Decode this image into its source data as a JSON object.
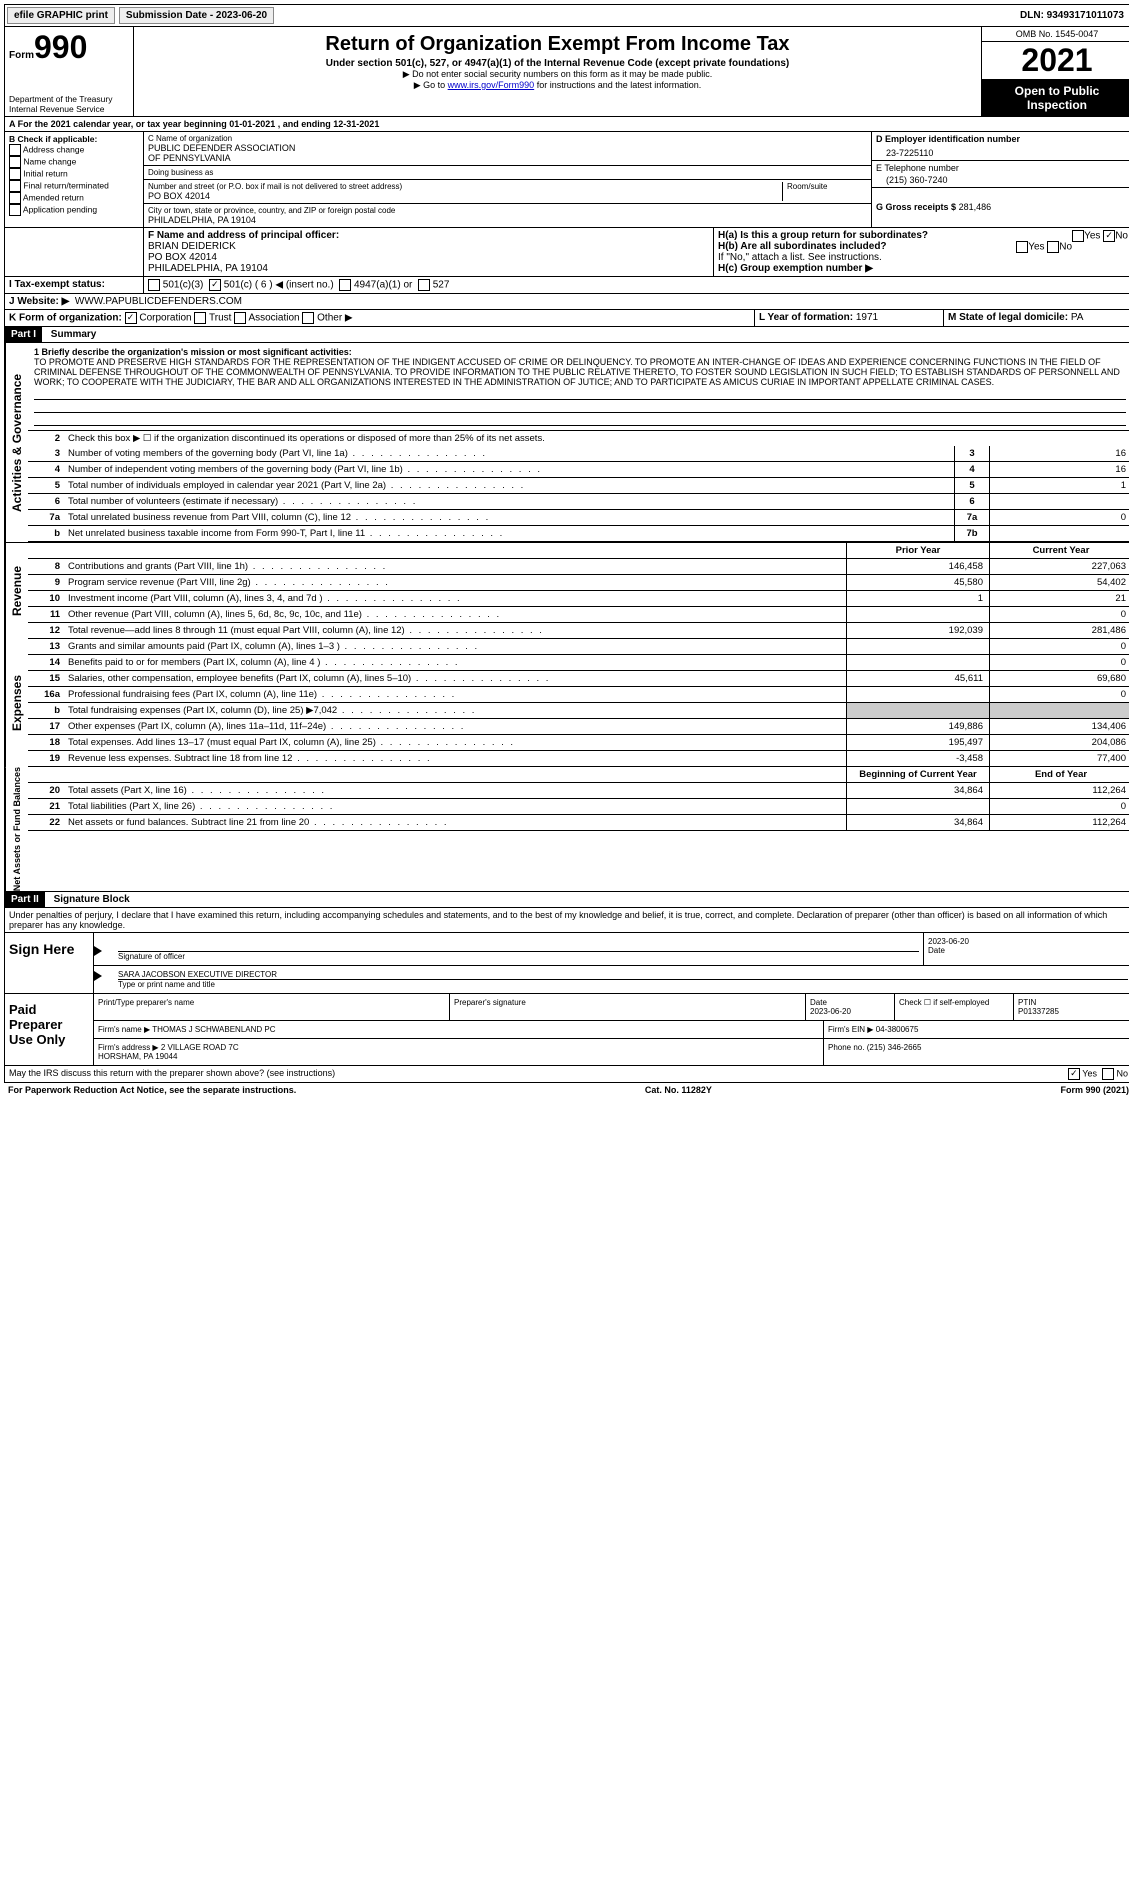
{
  "topbar": {
    "efile": "efile GRAPHIC print",
    "submission_label": "Submission Date - 2023-06-20",
    "dln": "DLN: 93493171011073"
  },
  "header": {
    "form_label": "Form",
    "form_number": "990",
    "title": "Return of Organization Exempt From Income Tax",
    "subtitle": "Under section 501(c), 527, or 4947(a)(1) of the Internal Revenue Code (except private foundations)",
    "note1": "▶ Do not enter social security numbers on this form as it may be made public.",
    "note2_prefix": "▶ Go to ",
    "note2_link": "www.irs.gov/Form990",
    "note2_suffix": " for instructions and the latest information.",
    "dept": "Department of the Treasury\nInternal Revenue Service",
    "omb": "OMB No. 1545-0047",
    "year": "2021",
    "open_public": "Open to Public Inspection"
  },
  "line_a": "A  For the 2021 calendar year, or tax year beginning 01-01-2021    , and ending 12-31-2021",
  "section_b": {
    "header": "B Check if applicable:",
    "items": [
      "Address change",
      "Name change",
      "Initial return",
      "Final return/terminated",
      "Amended return",
      "Application pending"
    ]
  },
  "section_c": {
    "name_label": "C Name of organization",
    "name": "PUBLIC DEFENDER ASSOCIATION\nOF PENNSYLVANIA",
    "dba_label": "Doing business as",
    "dba": "",
    "street_label": "Number and street (or P.O. box if mail is not delivered to street address)",
    "street": "PO BOX 42014",
    "room_label": "Room/suite",
    "city_label": "City or town, state or province, country, and ZIP or foreign postal code",
    "city": "PHILADELPHIA, PA  19104"
  },
  "section_d": {
    "label": "D Employer identification number",
    "value": "23-7225110"
  },
  "section_e": {
    "label": "E Telephone number",
    "value": "(215) 360-7240"
  },
  "section_g": {
    "label": "G Gross receipts $",
    "value": "281,486"
  },
  "section_f": {
    "label": "F  Name and address of principal officer:",
    "name": "BRIAN DEIDERICK",
    "addr1": "PO BOX 42014",
    "addr2": "PHILADELPHIA, PA  19104"
  },
  "section_h": {
    "a_label": "H(a)  Is this a group return for subordinates?",
    "a_yes": "Yes",
    "a_no": "No",
    "b_label": "H(b)  Are all subordinates included?",
    "b_note": "If \"No,\" attach a list. See instructions.",
    "c_label": "H(c)  Group exemption number ▶"
  },
  "line_i": {
    "label": "I   Tax-exempt status:",
    "opts": [
      "501(c)(3)",
      "501(c) ( 6 ) ◀ (insert no.)",
      "4947(a)(1) or",
      "527"
    ]
  },
  "line_j": {
    "label": "J   Website: ▶",
    "value": "WWW.PAPUBLICDEFENDERS.COM"
  },
  "line_k": {
    "label": "K Form of organization:",
    "opts": [
      "Corporation",
      "Trust",
      "Association",
      "Other ▶"
    ]
  },
  "line_l": {
    "label": "L Year of formation:",
    "value": "1971"
  },
  "line_m": {
    "label": "M State of legal domicile:",
    "value": "PA"
  },
  "part1": {
    "header": "Part I",
    "title": "Summary",
    "line1_label": "1   Briefly describe the organization's mission or most significant activities:",
    "mission": "TO PROMOTE AND PRESERVE HIGH STANDARDS FOR THE REPRESENTATION OF THE INDIGENT ACCUSED OF CRIME OR DELINQUENCY. TO PROMOTE AN INTER-CHANGE OF IDEAS AND EXPERIENCE CONCERNING FUNCTIONS IN THE FIELD OF CRIMINAL DEFENSE THROUGHOUT OF THE COMMONWEALTH OF PENNSYLVANIA. TO PROVIDE INFORMATION TO THE PUBLIC RELATIVE THERETO, TO FOSTER SOUND LEGISLATION IN SUCH FIELD; TO ESTABLISH STANDARDS OF PERSONNELL AND WORK; TO COOPERATE WITH THE JUDICIARY, THE BAR AND ALL ORGANIZATIONS INTERESTED IN THE ADMINISTRATION OF JUTICE; AND TO PARTICIPATE AS AMICUS CURIAE IN IMPORTANT APPELLATE CRIMINAL CASES.",
    "line2": "Check this box ▶ ☐ if the organization discontinued its operations or disposed of more than 25% of its net assets.",
    "governance_label": "Activities & Governance",
    "rows_g": [
      {
        "n": "3",
        "d": "Number of voting members of the governing body (Part VI, line 1a)",
        "box": "3",
        "v": "16"
      },
      {
        "n": "4",
        "d": "Number of independent voting members of the governing body (Part VI, line 1b)",
        "box": "4",
        "v": "16"
      },
      {
        "n": "5",
        "d": "Total number of individuals employed in calendar year 2021 (Part V, line 2a)",
        "box": "5",
        "v": "1"
      },
      {
        "n": "6",
        "d": "Total number of volunteers (estimate if necessary)",
        "box": "6",
        "v": ""
      },
      {
        "n": "7a",
        "d": "Total unrelated business revenue from Part VIII, column (C), line 12",
        "box": "7a",
        "v": "0"
      },
      {
        "n": "b",
        "d": "Net unrelated business taxable income from Form 990-T, Part I, line 11",
        "box": "7b",
        "v": ""
      }
    ],
    "prior_year": "Prior Year",
    "current_year": "Current Year",
    "revenue_label": "Revenue",
    "rows_r": [
      {
        "n": "8",
        "d": "Contributions and grants (Part VIII, line 1h)",
        "p": "146,458",
        "c": "227,063"
      },
      {
        "n": "9",
        "d": "Program service revenue (Part VIII, line 2g)",
        "p": "45,580",
        "c": "54,402"
      },
      {
        "n": "10",
        "d": "Investment income (Part VIII, column (A), lines 3, 4, and 7d )",
        "p": "1",
        "c": "21"
      },
      {
        "n": "11",
        "d": "Other revenue (Part VIII, column (A), lines 5, 6d, 8c, 9c, 10c, and 11e)",
        "p": "",
        "c": "0"
      },
      {
        "n": "12",
        "d": "Total revenue—add lines 8 through 11 (must equal Part VIII, column (A), line 12)",
        "p": "192,039",
        "c": "281,486"
      }
    ],
    "expenses_label": "Expenses",
    "rows_e": [
      {
        "n": "13",
        "d": "Grants and similar amounts paid (Part IX, column (A), lines 1–3 )",
        "p": "",
        "c": "0"
      },
      {
        "n": "14",
        "d": "Benefits paid to or for members (Part IX, column (A), line 4 )",
        "p": "",
        "c": "0"
      },
      {
        "n": "15",
        "d": "Salaries, other compensation, employee benefits (Part IX, column (A), lines 5–10)",
        "p": "45,611",
        "c": "69,680"
      },
      {
        "n": "16a",
        "d": "Professional fundraising fees (Part IX, column (A), line 11e)",
        "p": "",
        "c": "0"
      },
      {
        "n": "b",
        "d": "Total fundraising expenses (Part IX, column (D), line 25) ▶7,042",
        "p": "shaded",
        "c": "shaded"
      },
      {
        "n": "17",
        "d": "Other expenses (Part IX, column (A), lines 11a–11d, 11f–24e)",
        "p": "149,886",
        "c": "134,406"
      },
      {
        "n": "18",
        "d": "Total expenses. Add lines 13–17 (must equal Part IX, column (A), line 25)",
        "p": "195,497",
        "c": "204,086"
      },
      {
        "n": "19",
        "d": "Revenue less expenses. Subtract line 18 from line 12",
        "p": "-3,458",
        "c": "77,400"
      }
    ],
    "netassets_label": "Net Assets or Fund Balances",
    "begin_year": "Beginning of Current Year",
    "end_year": "End of Year",
    "rows_n": [
      {
        "n": "20",
        "d": "Total assets (Part X, line 16)",
        "p": "34,864",
        "c": "112,264"
      },
      {
        "n": "21",
        "d": "Total liabilities (Part X, line 26)",
        "p": "",
        "c": "0"
      },
      {
        "n": "22",
        "d": "Net assets or fund balances. Subtract line 21 from line 20",
        "p": "34,864",
        "c": "112,264"
      }
    ]
  },
  "part2": {
    "header": "Part II",
    "title": "Signature Block",
    "declaration": "Under penalties of perjury, I declare that I have examined this return, including accompanying schedules and statements, and to the best of my knowledge and belief, it is true, correct, and complete. Declaration of preparer (other than officer) is based on all information of which preparer has any knowledge.",
    "sign_here": "Sign Here",
    "sig_officer": "Signature of officer",
    "sig_date": "2023-06-20",
    "sig_date_label": "Date",
    "officer_name": "SARA JACOBSON  EXECUTIVE DIRECTOR",
    "officer_name_label": "Type or print name and title",
    "paid_preparer": "Paid Preparer Use Only",
    "prep_name_label": "Print/Type preparer's name",
    "prep_sig_label": "Preparer's signature",
    "prep_date_label": "Date",
    "prep_date": "2023-06-20",
    "prep_check": "Check ☐ if self-employed",
    "ptin_label": "PTIN",
    "ptin": "P01337285",
    "firm_name_label": "Firm's name    ▶",
    "firm_name": "THOMAS J SCHWABENLAND PC",
    "firm_ein_label": "Firm's EIN ▶",
    "firm_ein": "04-3800675",
    "firm_addr_label": "Firm's address ▶",
    "firm_addr": "2 VILLAGE ROAD 7C\nHORSHAM, PA  19044",
    "phone_label": "Phone no.",
    "phone": "(215) 346-2665",
    "discuss": "May the IRS discuss this return with the preparer shown above? (see instructions)",
    "discuss_yes": "Yes",
    "discuss_no": "No"
  },
  "footer": {
    "left": "For Paperwork Reduction Act Notice, see the separate instructions.",
    "mid": "Cat. No. 11282Y",
    "right": "Form 990 (2021)"
  }
}
